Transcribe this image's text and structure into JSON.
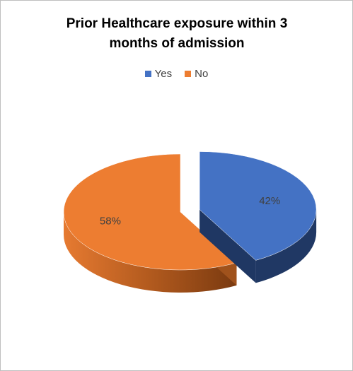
{
  "chart_data": {
    "type": "pie",
    "title_lines": [
      "Prior Healthcare exposure within 3",
      "months of admission"
    ],
    "legend": {
      "placement": "top",
      "entries": [
        "Yes",
        "No"
      ]
    },
    "categories": [
      "Yes",
      "No"
    ],
    "values": [
      42,
      58
    ],
    "data_labels": [
      "42%",
      "58%"
    ],
    "colors": {
      "Yes": "#4472c4",
      "No": "#ed7d31"
    },
    "exploded": "Yes",
    "style": "3d"
  }
}
